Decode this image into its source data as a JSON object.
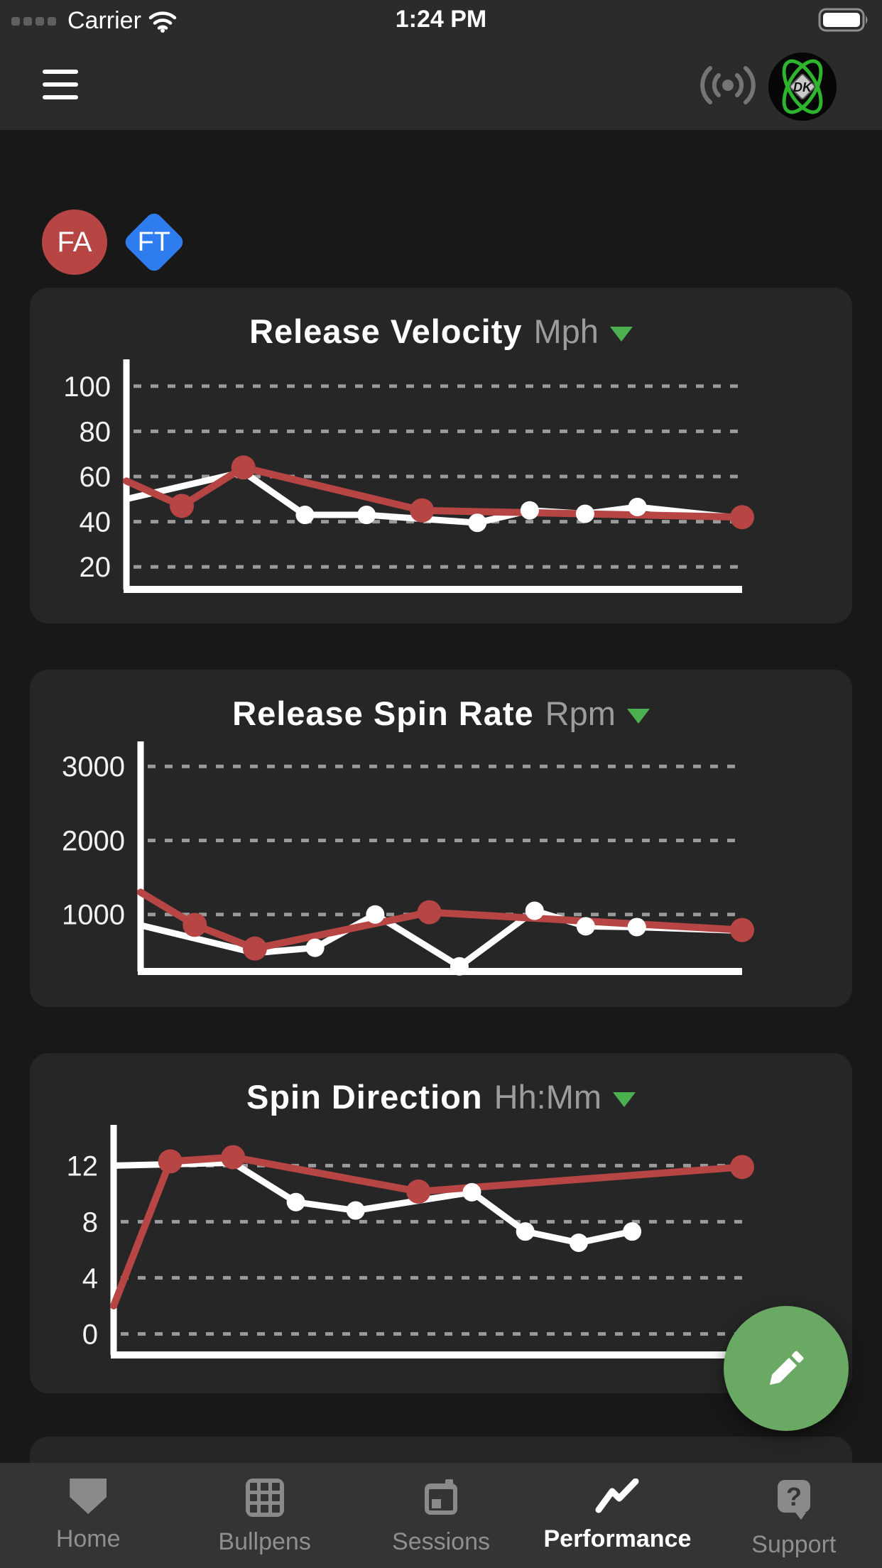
{
  "status_bar": {
    "carrier": "Carrier",
    "time": "1:24 PM",
    "battery_level": "full"
  },
  "header": {
    "menu_icon": "hamburger-menu-icon",
    "broadcast_icon": "sensor-broadcast-icon",
    "logo_text": "DK"
  },
  "badges": [
    {
      "label": "FA",
      "shape": "circle",
      "color": "#b64543"
    },
    {
      "label": "FT",
      "shape": "diamond",
      "color": "#2e7cf0"
    }
  ],
  "accent": {
    "green": "#4caf50",
    "fab_green": "#6aa963",
    "red": "#b64543",
    "white": "#ffffff"
  },
  "chart_data": [
    {
      "type": "line",
      "title": "Release Velocity",
      "unit": "Mph",
      "yticks": [
        100,
        80,
        60,
        40,
        20
      ],
      "ylim": [
        10,
        110
      ],
      "grid": "dashed-horizontal",
      "layout": {
        "axis_x": 136
      },
      "series": [
        {
          "name": "white",
          "color": "#ffffff",
          "width": 9,
          "dot_radius": 13,
          "points": [
            {
              "x": 0.0,
              "v": 50,
              "dot": false
            },
            {
              "x": 0.19,
              "v": 62,
              "dot": false
            },
            {
              "x": 0.29,
              "v": 43,
              "dot": true
            },
            {
              "x": 0.39,
              "v": 43,
              "dot": true
            },
            {
              "x": 0.57,
              "v": 39.5,
              "dot": true
            },
            {
              "x": 0.655,
              "v": 45,
              "dot": true
            },
            {
              "x": 0.745,
              "v": 43.5,
              "dot": true
            },
            {
              "x": 0.83,
              "v": 46.5,
              "dot": true
            },
            {
              "x": 1.0,
              "v": 41.5,
              "dot": false
            }
          ]
        },
        {
          "name": "red",
          "color": "#b64543",
          "width": 10,
          "dot_radius": 17,
          "points": [
            {
              "x": 0.0,
              "v": 58,
              "dot": false
            },
            {
              "x": 0.09,
              "v": 47,
              "dot": true
            },
            {
              "x": 0.19,
              "v": 64,
              "dot": true
            },
            {
              "x": 0.48,
              "v": 45,
              "dot": true
            },
            {
              "x": 1.0,
              "v": 42,
              "dot": true
            }
          ]
        }
      ]
    },
    {
      "type": "line",
      "title": "Release Spin Rate",
      "unit": "Rpm",
      "yticks": [
        3000,
        2000,
        1000
      ],
      "ylim": [
        230,
        3280
      ],
      "grid": "dashed-horizontal",
      "layout": {
        "axis_x": 156
      },
      "series": [
        {
          "name": "white",
          "color": "#ffffff",
          "width": 9,
          "dot_radius": 13,
          "points": [
            {
              "x": 0.0,
              "v": 855,
              "dot": false
            },
            {
              "x": 0.19,
              "v": 480,
              "dot": false
            },
            {
              "x": 0.29,
              "v": 550,
              "dot": true
            },
            {
              "x": 0.39,
              "v": 1000,
              "dot": true
            },
            {
              "x": 0.53,
              "v": 300,
              "dot": true
            },
            {
              "x": 0.655,
              "v": 1050,
              "dot": true
            },
            {
              "x": 0.74,
              "v": 840,
              "dot": true
            },
            {
              "x": 0.825,
              "v": 830,
              "dot": true
            },
            {
              "x": 1.0,
              "v": 780,
              "dot": false
            }
          ]
        },
        {
          "name": "red",
          "color": "#b64543",
          "width": 10,
          "dot_radius": 17,
          "points": [
            {
              "x": 0.0,
              "v": 1300,
              "dot": false
            },
            {
              "x": 0.09,
              "v": 860,
              "dot": true
            },
            {
              "x": 0.19,
              "v": 540,
              "dot": true
            },
            {
              "x": 0.48,
              "v": 1030,
              "dot": true
            },
            {
              "x": 1.0,
              "v": 790,
              "dot": true
            }
          ]
        }
      ]
    },
    {
      "type": "line",
      "title": "Spin Direction",
      "unit": "Hh:Mm",
      "yticks": [
        12,
        8,
        4,
        0
      ],
      "ylim": [
        -1.5,
        14.6
      ],
      "grid": "dashed-horizontal",
      "layout": {
        "axis_x": 118
      },
      "series": [
        {
          "name": "white",
          "color": "#ffffff",
          "width": 9,
          "dot_radius": 13,
          "points": [
            {
              "x": 0.0,
              "v": 12,
              "dot": false
            },
            {
              "x": 0.19,
              "v": 12.2,
              "dot": false
            },
            {
              "x": 0.29,
              "v": 9.4,
              "dot": true
            },
            {
              "x": 0.385,
              "v": 8.8,
              "dot": true
            },
            {
              "x": 0.57,
              "v": 10.1,
              "dot": true
            },
            {
              "x": 0.655,
              "v": 7.3,
              "dot": true
            },
            {
              "x": 0.74,
              "v": 6.5,
              "dot": true
            },
            {
              "x": 0.825,
              "v": 7.3,
              "dot": true
            }
          ]
        },
        {
          "name": "red",
          "color": "#b64543",
          "width": 10,
          "dot_radius": 17,
          "points": [
            {
              "x": 0.0,
              "v": 2,
              "dot": false
            },
            {
              "x": 0.09,
              "v": 12.3,
              "dot": true
            },
            {
              "x": 0.19,
              "v": 12.6,
              "dot": true
            },
            {
              "x": 0.485,
              "v": 10.15,
              "dot": true
            },
            {
              "x": 1.0,
              "v": 11.9,
              "dot": true
            }
          ]
        }
      ]
    }
  ],
  "fab": {
    "icon": "pencil-icon",
    "color": "#6aa963"
  },
  "tab_bar": {
    "items": [
      {
        "label": "Home",
        "icon": "home-plate-icon",
        "active": false
      },
      {
        "label": "Bullpens",
        "icon": "grid-icon",
        "active": false
      },
      {
        "label": "Sessions",
        "icon": "calendar-icon",
        "active": false
      },
      {
        "label": "Performance",
        "icon": "trend-line-icon",
        "active": true
      },
      {
        "label": "Support",
        "icon": "help-bubble-icon",
        "active": false
      }
    ]
  }
}
